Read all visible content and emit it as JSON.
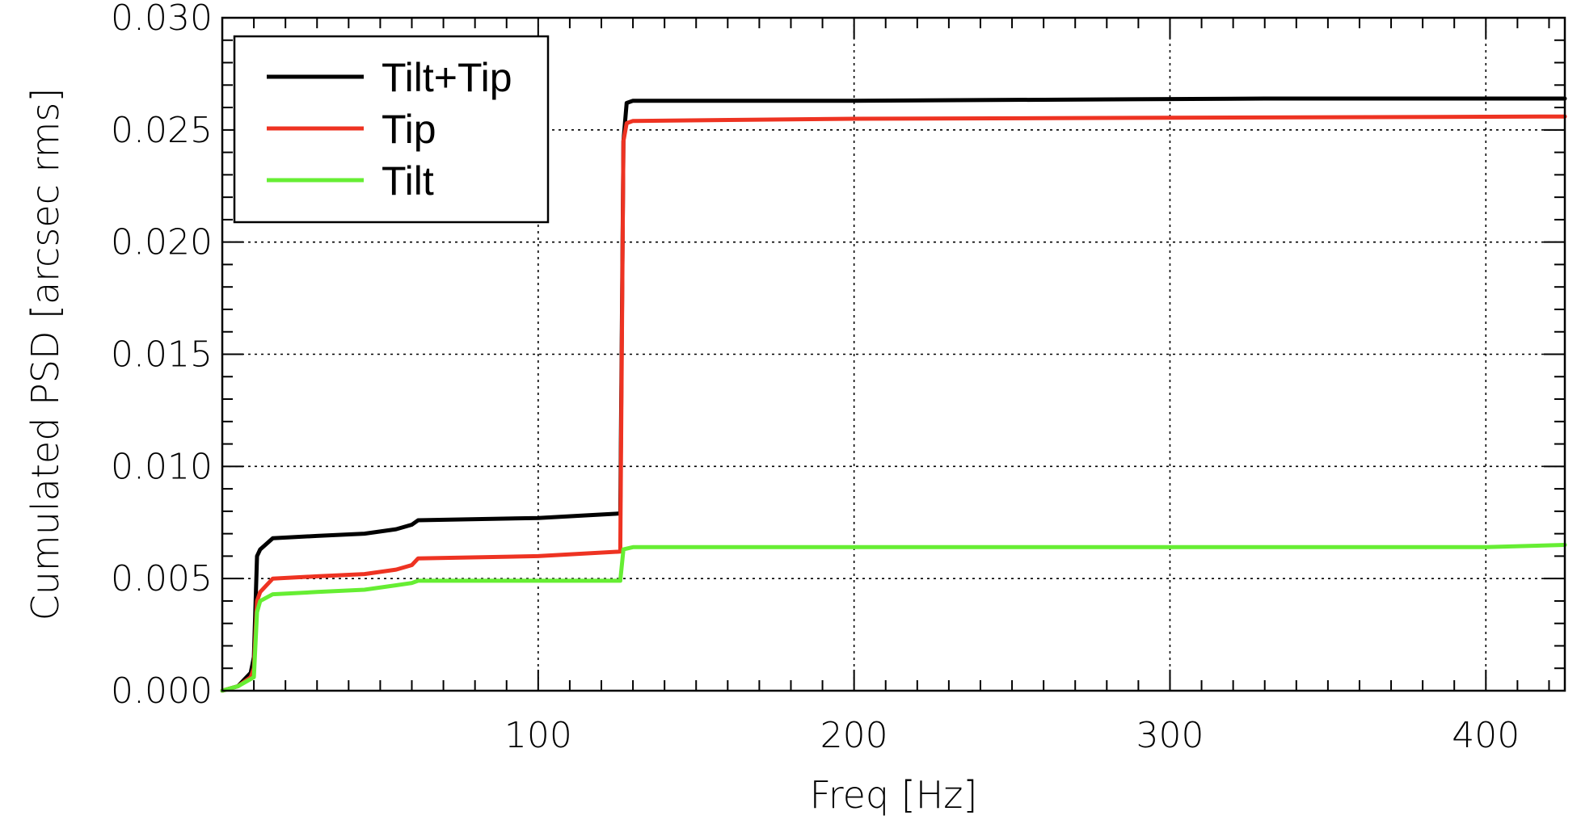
{
  "chart_data": {
    "type": "line",
    "title": "",
    "xlabel": "Freq [Hz]",
    "ylabel": "Cumulated PSD [arcsec rms]",
    "xlim": [
      0,
      425
    ],
    "ylim": [
      0,
      0.03
    ],
    "x_ticks": [
      100,
      200,
      300,
      400
    ],
    "x_tick_labels": [
      "100",
      "200",
      "300",
      "400"
    ],
    "y_ticks": [
      0,
      0.005,
      0.01,
      0.015,
      0.02,
      0.025,
      0.03
    ],
    "y_tick_labels": [
      "0.000",
      "0.005",
      "0.010",
      "0.015",
      "0.020",
      "0.025",
      "0.030"
    ],
    "grid": true,
    "legend_position": "top-left",
    "series": [
      {
        "name": "Tilt+Tip",
        "color": "#000000",
        "x": [
          0,
          5,
          9,
          10,
          11,
          12,
          16,
          30,
          45,
          55,
          60,
          62,
          100,
          126,
          127,
          128,
          130,
          200,
          330,
          425
        ],
        "y": [
          0,
          0.0002,
          0.0008,
          0.0015,
          0.006,
          0.0063,
          0.0068,
          0.0069,
          0.007,
          0.0072,
          0.0074,
          0.0076,
          0.0077,
          0.0079,
          0.0245,
          0.0262,
          0.0263,
          0.0263,
          0.0264,
          0.0264
        ]
      },
      {
        "name": "Tip",
        "color": "#ee3322",
        "x": [
          0,
          5,
          9,
          10,
          11,
          12,
          16,
          30,
          45,
          55,
          60,
          62,
          100,
          126,
          127,
          128,
          130,
          200,
          425
        ],
        "y": [
          0,
          0.0002,
          0.0006,
          0.001,
          0.004,
          0.0044,
          0.005,
          0.0051,
          0.0052,
          0.0054,
          0.0056,
          0.0059,
          0.006,
          0.0062,
          0.0245,
          0.0253,
          0.0254,
          0.0255,
          0.0256
        ]
      },
      {
        "name": "Tilt",
        "color": "#66ee33",
        "x": [
          0,
          5,
          10,
          11,
          12,
          16,
          30,
          45,
          55,
          60,
          62,
          100,
          126,
          127,
          130,
          400,
          425
        ],
        "y": [
          0,
          0.0002,
          0.0006,
          0.0035,
          0.004,
          0.0043,
          0.0044,
          0.0045,
          0.0047,
          0.0048,
          0.0049,
          0.0049,
          0.0049,
          0.0063,
          0.0064,
          0.0064,
          0.0065
        ]
      }
    ]
  }
}
